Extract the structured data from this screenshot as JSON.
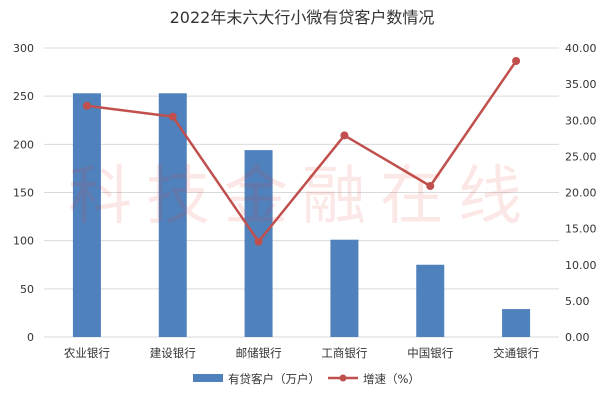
{
  "chart_data": {
    "type": "bar",
    "title": "2022年末六大行小微有贷客户数情况",
    "categories": [
      "农业银行",
      "建设银行",
      "邮储银行",
      "工商银行",
      "中国银行",
      "交通银行"
    ],
    "series": [
      {
        "name": "有贷客户（万户）",
        "type": "bar",
        "axis": "left",
        "color": "#4f81bd",
        "values": [
          253,
          253,
          194,
          101,
          75,
          29
        ]
      },
      {
        "name": "增速（%）",
        "type": "line",
        "axis": "right",
        "color": "#c0504d",
        "values": [
          32.0,
          30.5,
          13.2,
          27.9,
          20.9,
          38.2
        ]
      }
    ],
    "y_left": {
      "min": 0,
      "max": 300,
      "ticks": [
        "0",
        "50",
        "100",
        "150",
        "200",
        "250",
        "300"
      ]
    },
    "y_right": {
      "min": 0,
      "max": 40,
      "ticks": [
        "0.00",
        "5.00",
        "10.00",
        "15.00",
        "20.00",
        "25.00",
        "30.00",
        "35.00",
        "40.00"
      ]
    },
    "grid": true,
    "legend_position": "bottom",
    "watermark": "科技金融在线"
  }
}
